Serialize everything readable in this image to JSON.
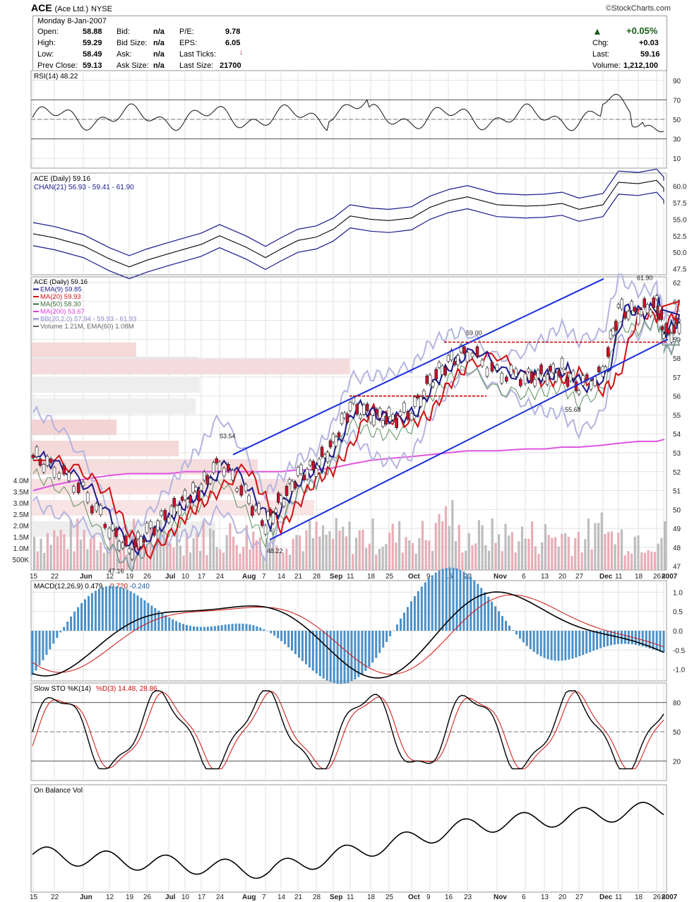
{
  "header": {
    "symbol": "ACE",
    "name": "(Ace Ltd.)",
    "exchange": "NYSE",
    "site": "©StockCharts.com"
  },
  "quote": {
    "date": "Monday  8-Jan-2007",
    "open_label": "Open:",
    "open": "58.88",
    "high_label": "High:",
    "high": "59.29",
    "low_label": "Low:",
    "low": "58.49",
    "prev_label": "Prev Close:",
    "prev": "59.13",
    "bid_label": "Bid:",
    "bid": "n/a",
    "bidsize_label": "Bid Size:",
    "bidsize": "n/a",
    "ask_label": "Ask:",
    "ask": "n/a",
    "asksize_label": "Ask Size:",
    "asksize": "n/a",
    "pe_label": "P/E:",
    "pe": "9.78",
    "eps_label": "EPS:",
    "eps": "6.05",
    "lastticks_label": "Last Ticks:",
    "lastsize_label": "Last Size:",
    "lastsize": "21700",
    "pct": "+0.05%",
    "chg_label": "Chg:",
    "chg": "+0.03",
    "last_label": "Last:",
    "last": "59.16",
    "volume_label": "Volume:",
    "volume": "1,212,100",
    "up_color": "#1a5e1a"
  },
  "panels": {
    "rsi": {
      "label": "RSI(14) 48.22",
      "ticks": [
        "90",
        "70",
        "50",
        "30",
        "10"
      ]
    },
    "chan": {
      "label1": "ACE (Daily) 59.16",
      "label2": "CHAN(21) 56.93 - 59.41 - 61.90",
      "ticks": [
        "60.0",
        "57.5",
        "55.0",
        "52.5",
        "50.0",
        "47.5"
      ]
    },
    "price": {
      "legend": [
        {
          "text": "ACE (Daily) 59.16",
          "color": "#000000"
        },
        {
          "text": "EMA(9) 59.85",
          "color": "#1a1a8c"
        },
        {
          "text": "MA(20) 59.93",
          "color": "#d01010"
        },
        {
          "text": "MA(50) 58.30",
          "color": "#3a6e3a"
        },
        {
          "text": "MA(200) 53.67",
          "color": "#e040e0"
        },
        {
          "text": "BB(20,2.0) 57.94 - 59.93 - 61.93",
          "color": "#8888cc"
        },
        {
          "text": "Volume 1.21M, EMA(60) 1.08M",
          "color": "#666666"
        }
      ],
      "ticks": [
        "62",
        "61",
        "60",
        "59",
        "58",
        "57",
        "56",
        "55",
        "54",
        "53",
        "52",
        "51",
        "50",
        "49",
        "48",
        "47"
      ],
      "vol_ticks": [
        "4.0M",
        "3.5M",
        "3.0M",
        "2.5M",
        "2.0M",
        "1.5M",
        "1.0M",
        "500K"
      ],
      "annotations": [
        "53.54",
        "48.22",
        "47.16",
        "59.00",
        "55.68",
        "61.90"
      ]
    },
    "macd": {
      "label1": "MACD(12,26,9) 0.479, ",
      "label2": "0.720",
      "label3": ", -0.240",
      "ticks": [
        "1.0",
        "0.5",
        "0.0",
        "-0.5",
        "-1.0"
      ]
    },
    "sto": {
      "label1": "Slow STO %K(14) ",
      "label2": "%D(3) 14.48, 28.86",
      "ticks": [
        "80",
        "50",
        "20"
      ]
    },
    "obv": {
      "label": "On Balance Vol"
    }
  },
  "xaxis": {
    "labels": [
      "15",
      "22",
      "Jun",
      "12",
      "19",
      "26",
      "Jul",
      "10",
      "17",
      "24",
      "Aug",
      "7",
      "14",
      "21",
      "28",
      "Sep",
      "11",
      "18",
      "25",
      "Oct",
      "9",
      "16",
      "23",
      "Nov",
      "6",
      "13",
      "20",
      "27",
      "Dec",
      "11",
      "18",
      "26",
      "2007",
      "8"
    ]
  },
  "chart_data": {
    "type": "line",
    "title": "ACE (Ace Ltd.) NYSE",
    "x": [
      "15",
      "22",
      "Jun",
      "12",
      "19",
      "26",
      "Jul",
      "10",
      "17",
      "24",
      "Aug",
      "7",
      "14",
      "21",
      "28",
      "Sep",
      "11",
      "18",
      "25",
      "Oct",
      "9",
      "16",
      "23",
      "Nov",
      "6",
      "13",
      "20",
      "27",
      "Dec",
      "11",
      "18",
      "26",
      "2007",
      "8"
    ],
    "series": [
      {
        "name": "ACE (Daily) 59.16",
        "values": [
          52.8,
          52.2,
          51.0,
          49.0,
          47.8,
          48.8,
          49.8,
          50.5,
          51.2,
          52.5,
          50.8,
          49.2,
          50.5,
          51.8,
          52.3,
          53.5,
          55.5,
          55.0,
          54.8,
          55.2,
          56.8,
          57.8,
          58.4,
          57.2,
          57.0,
          57.1,
          57.4,
          56.5,
          57.2,
          60.6,
          60.4,
          60.9,
          59.7,
          59.16
        ]
      },
      {
        "name": "MA(200) 53.67",
        "values": [
          51.0,
          51.3,
          51.6,
          51.8,
          51.9,
          51.9,
          51.9,
          52.0,
          52.0,
          52.0,
          52.0,
          52.0,
          52.0,
          52.1,
          52.1,
          52.2,
          52.4,
          52.6,
          52.7,
          52.8,
          52.9,
          53.0,
          53.1,
          53.1,
          53.2,
          53.2,
          53.3,
          53.3,
          53.4,
          53.5,
          53.6,
          53.6,
          53.7,
          53.67
        ]
      }
    ],
    "ylim": [
      46.8,
      62.3
    ]
  }
}
